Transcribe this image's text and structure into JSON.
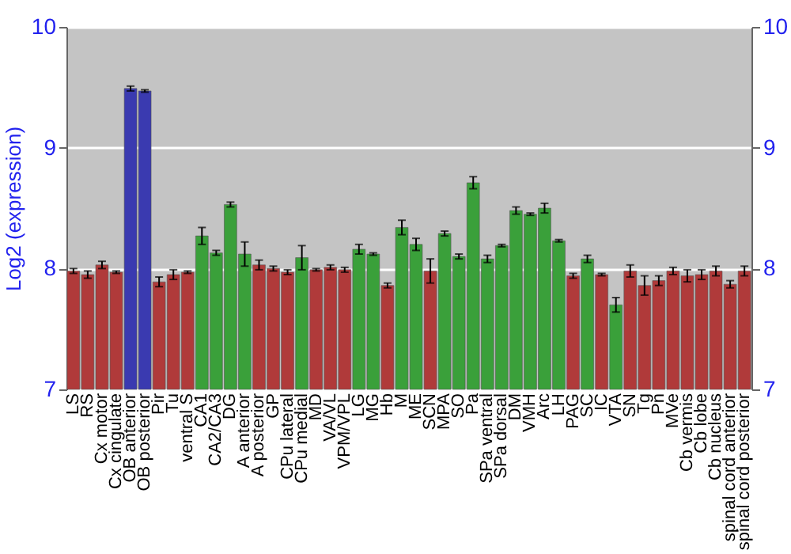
{
  "chart_data": {
    "type": "bar",
    "ylabel": "Log2 (expression)",
    "categories": [
      "LS",
      "RS",
      "Cx motor",
      "Cx cingulate",
      "OB anterior",
      "OB posterior",
      "Pir",
      "Tu",
      "ventral S",
      "CA1",
      "CA2/CA3",
      "DG",
      "A anterior",
      "A posterior",
      "GP",
      "CPu lateral",
      "CPu medial",
      "MD",
      "VA/VL",
      "VPM/VPL",
      "LG",
      "MG",
      "Hb",
      "M",
      "ME",
      "SCN",
      "MPA",
      "SO",
      "Pa",
      "SPa ventral",
      "SPa dorsal",
      "DM",
      "VMH",
      "Arc",
      "LH",
      "PAG",
      "SC",
      "IC",
      "VTA",
      "SN",
      "Tg",
      "Pn",
      "MVe",
      "Cb vermis",
      "Cb lobe",
      "Cb nucleus",
      "spinal cord anterior",
      "spinal cord posterior"
    ],
    "values": [
      7.98,
      7.95,
      8.03,
      7.97,
      9.49,
      9.47,
      7.89,
      7.95,
      7.97,
      8.27,
      8.13,
      8.53,
      8.12,
      8.03,
      8.0,
      7.97,
      8.09,
      7.99,
      8.01,
      7.99,
      8.16,
      8.12,
      7.86,
      8.34,
      8.2,
      7.98,
      8.29,
      8.1,
      8.71,
      8.08,
      8.19,
      8.48,
      8.45,
      8.5,
      8.23,
      7.94,
      8.08,
      7.95,
      7.7,
      7.98,
      7.86,
      7.9,
      7.98,
      7.94,
      7.95,
      7.98,
      7.87,
      7.98
    ],
    "errors": [
      0.02,
      0.03,
      0.03,
      0.01,
      0.02,
      0.01,
      0.04,
      0.04,
      0.01,
      0.07,
      0.02,
      0.02,
      0.1,
      0.04,
      0.02,
      0.02,
      0.1,
      0.01,
      0.02,
      0.02,
      0.04,
      0.01,
      0.02,
      0.06,
      0.05,
      0.1,
      0.02,
      0.02,
      0.05,
      0.03,
      0.01,
      0.03,
      0.01,
      0.04,
      0.01,
      0.02,
      0.03,
      0.01,
      0.06,
      0.05,
      0.08,
      0.04,
      0.03,
      0.05,
      0.04,
      0.04,
      0.03,
      0.04
    ],
    "colors": [
      "#b03a3a",
      "#b03a3a",
      "#b03a3a",
      "#b03a3a",
      "#3a3ab0",
      "#3a3ab0",
      "#b03a3a",
      "#b03a3a",
      "#b03a3a",
      "#3aa03a",
      "#3aa03a",
      "#3aa03a",
      "#3aa03a",
      "#b03a3a",
      "#b03a3a",
      "#b03a3a",
      "#3aa03a",
      "#b03a3a",
      "#b03a3a",
      "#b03a3a",
      "#3aa03a",
      "#3aa03a",
      "#b03a3a",
      "#3aa03a",
      "#3aa03a",
      "#b03a3a",
      "#3aa03a",
      "#3aa03a",
      "#3aa03a",
      "#3aa03a",
      "#3aa03a",
      "#3aa03a",
      "#3aa03a",
      "#3aa03a",
      "#3aa03a",
      "#b03a3a",
      "#3aa03a",
      "#b03a3a",
      "#3aa03a",
      "#b03a3a",
      "#b03a3a",
      "#b03a3a",
      "#b03a3a",
      "#b03a3a",
      "#b03a3a",
      "#b03a3a",
      "#b03a3a",
      "#b03a3a"
    ],
    "ylim": [
      7,
      10
    ],
    "yticks": [
      7,
      8,
      9,
      10
    ],
    "y2lim": [
      7,
      10
    ],
    "y2ticks": [
      7,
      8,
      9,
      10
    ],
    "grid": "y"
  }
}
